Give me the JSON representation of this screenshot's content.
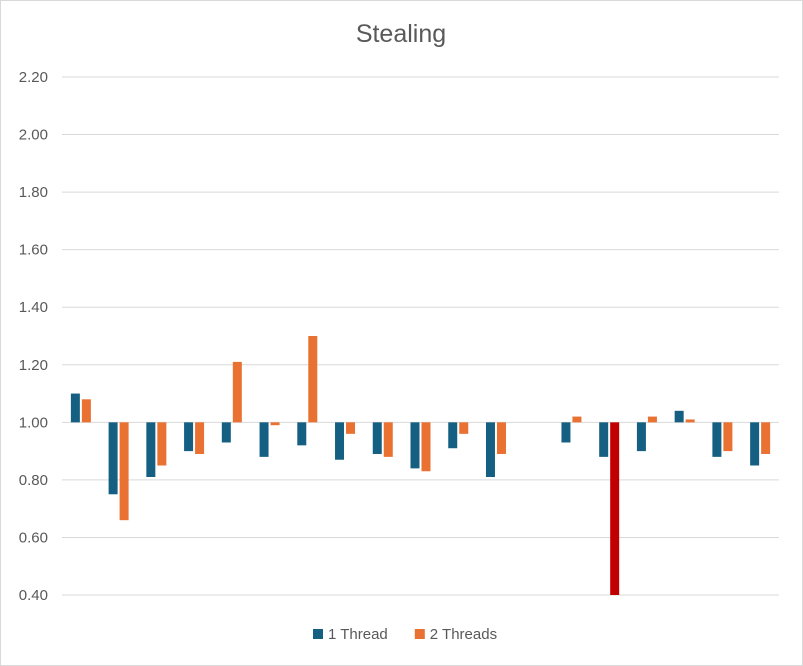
{
  "chart_data": {
    "type": "bar",
    "title": "Stealing",
    "xlabel": "",
    "ylabel": "",
    "ylim": [
      0.4,
      2.2
    ],
    "baseline": 1.0,
    "yticks": [
      "0.40",
      "0.60",
      "0.80",
      "1.00",
      "1.20",
      "1.40",
      "1.60",
      "1.80",
      "2.00",
      "2.20"
    ],
    "grid": true,
    "legend_position": "bottom",
    "categories": [
      "",
      "",
      "",
      "",
      "",
      "",
      "",
      "",
      "",
      "",
      "",
      "",
      "",
      "",
      "",
      "",
      "",
      "",
      ""
    ],
    "series": [
      {
        "name": "1 Thread",
        "color": "#156082",
        "values": [
          1.1,
          0.75,
          0.81,
          0.9,
          0.93,
          0.88,
          0.92,
          0.87,
          0.89,
          0.84,
          0.91,
          0.81,
          null,
          0.93,
          0.88,
          0.9,
          1.04,
          0.88,
          0.85
        ]
      },
      {
        "name": "2 Threads",
        "color": "#E97132",
        "highlight": {
          "index": 14,
          "color": "#C00000"
        },
        "values": [
          1.08,
          0.66,
          0.85,
          0.89,
          1.21,
          0.99,
          1.3,
          0.96,
          0.88,
          0.83,
          0.96,
          0.89,
          null,
          1.02,
          0.4,
          1.02,
          1.01,
          0.9,
          0.89
        ]
      }
    ]
  }
}
